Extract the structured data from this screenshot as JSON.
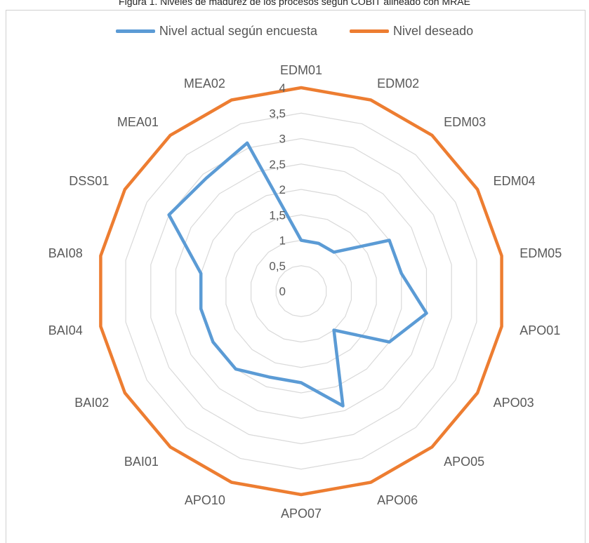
{
  "chart_data": {
    "type": "radar",
    "title": "Figura 1. Niveles de madurez de los procesos según COBIT alineado con MRAE",
    "categories": [
      "EDM01",
      "EDM02",
      "EDM03",
      "EDM04",
      "EDM05",
      "APO01",
      "APO03",
      "APO05",
      "APO06",
      "APO07",
      "APO10",
      "BAI01",
      "BAI02",
      "BAI04",
      "BAI08",
      "DSS01",
      "MEA01",
      "MEA02"
    ],
    "tick_labels": [
      "0",
      "0,5",
      "1",
      "1,5",
      "2",
      "2,5",
      "3",
      "3,5",
      "4"
    ],
    "rlim": [
      0,
      4
    ],
    "series": [
      {
        "name": "Nivel actual según encuesta",
        "color": "#5b9bd5",
        "values": [
          1.0,
          1.0,
          1.0,
          2.0,
          2.0,
          2.5,
          2.0,
          1.0,
          2.4,
          1.8,
          1.8,
          2.0,
          2.0,
          2.0,
          2.0,
          3.0,
          2.9,
          3.1
        ]
      },
      {
        "name": "Nivel deseado",
        "color": "#ed7d31",
        "values": [
          4,
          4,
          4,
          4,
          4,
          4,
          4,
          4,
          4,
          4,
          4,
          4,
          4,
          4,
          4,
          4,
          4,
          4
        ]
      }
    ],
    "legend_position": "top",
    "grid": true
  }
}
